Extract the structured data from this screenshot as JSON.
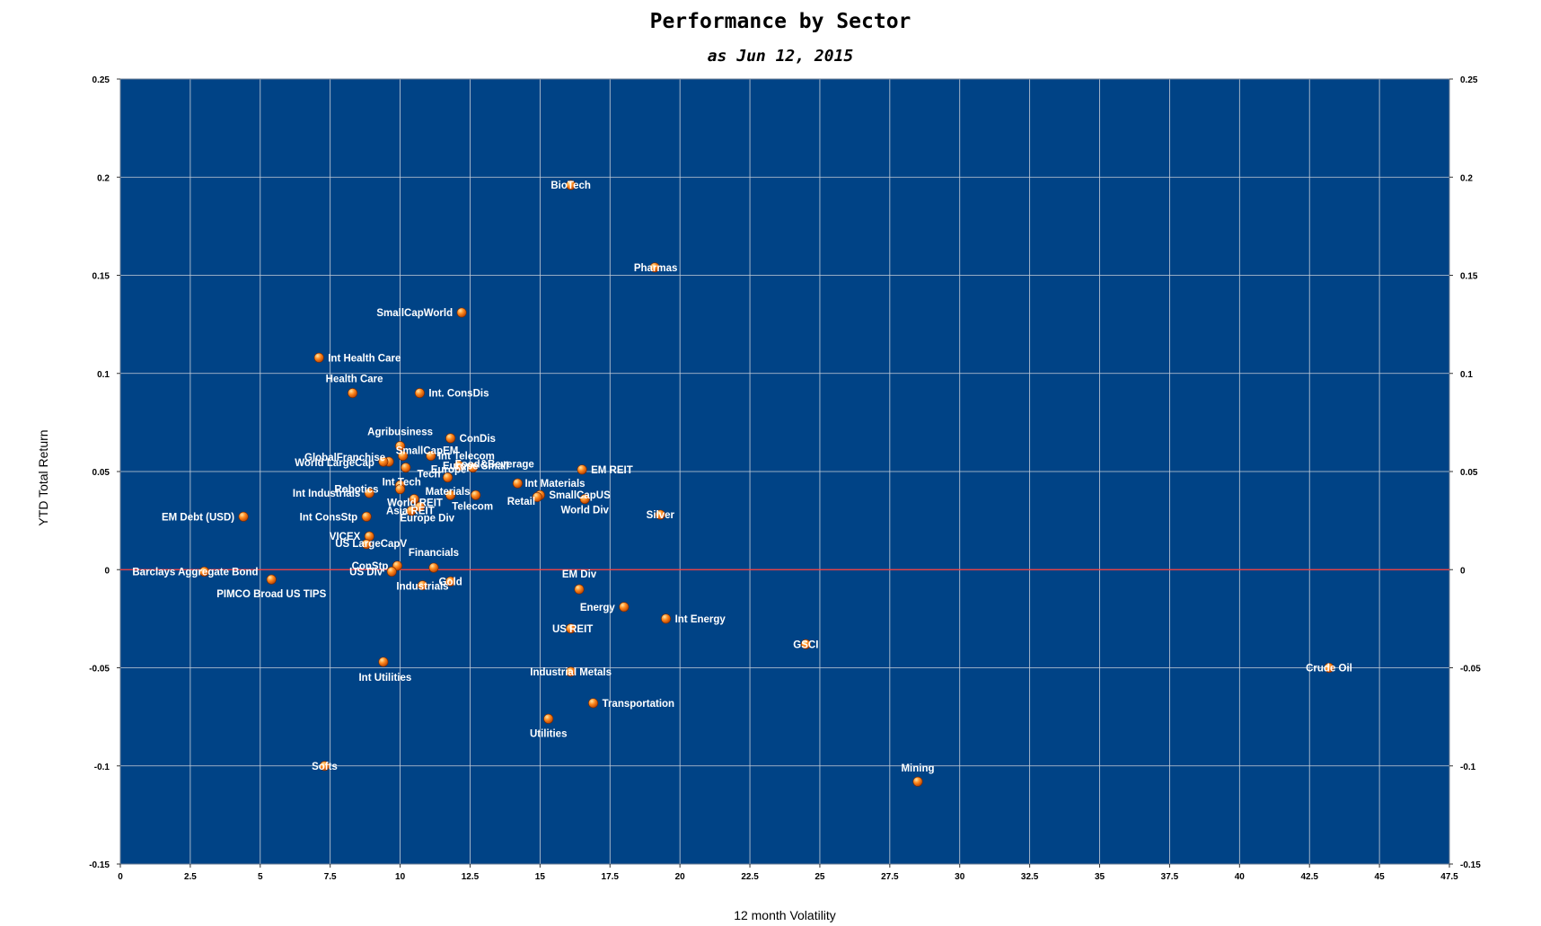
{
  "chart_data": {
    "type": "scatter",
    "title": "Performance by Sector",
    "subtitle": "as Jun 12, 2015",
    "xlabel": "12 month Volatility",
    "ylabel": "YTD Total Return",
    "xlim": [
      0,
      47.5
    ],
    "ylim": [
      -0.15,
      0.25
    ],
    "x_ticks": [
      "0",
      "2.5",
      "5",
      "7.5",
      "10",
      "12.5",
      "15",
      "17.5",
      "20",
      "22.5",
      "25",
      "27.5",
      "30",
      "32.5",
      "35",
      "37.5",
      "40",
      "42.5",
      "45",
      "47.5"
    ],
    "y_ticks": [
      "-0.15",
      "-0.1",
      "-0.05",
      "0",
      "0.05",
      "0.1",
      "0.15",
      "0.2",
      "0.25"
    ],
    "grid": true,
    "right_axis": true,
    "colors": {
      "plot_background": "#004386",
      "grid": "#c9cfd8",
      "zero_line": "#ff3b3b",
      "point": "#ff7a00",
      "label": "#ffffff"
    },
    "points": [
      {
        "label": "BioTech",
        "x": 16.1,
        "y": 0.196
      },
      {
        "label": "Pharmas",
        "x": 19.1,
        "y": 0.154
      },
      {
        "label": "SmallCapWorld",
        "x": 12.2,
        "y": 0.131
      },
      {
        "label": "Int Health Care",
        "x": 7.1,
        "y": 0.108
      },
      {
        "label": "Health Care",
        "x": 8.3,
        "y": 0.09
      },
      {
        "label": "Int. ConsDis",
        "x": 10.7,
        "y": 0.09
      },
      {
        "label": "Agribusiness",
        "x": 10.0,
        "y": 0.063
      },
      {
        "label": "ConDis",
        "x": 11.8,
        "y": 0.067
      },
      {
        "label": "SmallCapEM",
        "x": 10.1,
        "y": 0.058
      },
      {
        "label": "GlobalFranchise",
        "x": 9.6,
        "y": 0.055
      },
      {
        "label": "World LargeCap",
        "x": 9.4,
        "y": 0.055
      },
      {
        "label": "Int Telecom",
        "x": 11.1,
        "y": 0.058
      },
      {
        "label": "Europe",
        "x": 10.2,
        "y": 0.052
      },
      {
        "label": "Food&Beverage",
        "x": 12.6,
        "y": 0.052
      },
      {
        "label": "Europe Small",
        "x": 12.1,
        "y": 0.053
      },
      {
        "label": "EM REIT",
        "x": 16.5,
        "y": 0.051
      },
      {
        "label": "Int Materials",
        "x": 14.2,
        "y": 0.044
      },
      {
        "label": "Int Tech",
        "x": 10.0,
        "y": 0.043
      },
      {
        "label": "Tech",
        "x": 11.7,
        "y": 0.047
      },
      {
        "label": "Robotics",
        "x": 10.0,
        "y": 0.041
      },
      {
        "label": "Int Industrials",
        "x": 8.9,
        "y": 0.039
      },
      {
        "label": "World REIT",
        "x": 10.5,
        "y": 0.036
      },
      {
        "label": "Materials",
        "x": 11.8,
        "y": 0.038
      },
      {
        "label": "Retail",
        "x": 12.7,
        "y": 0.038
      },
      {
        "label": "SmallCapUS",
        "x": 15.0,
        "y": 0.038
      },
      {
        "label": "Asia REIT",
        "x": 10.4,
        "y": 0.03
      },
      {
        "label": "Telecom",
        "x": 14.9,
        "y": 0.037
      },
      {
        "label": "World Div",
        "x": 16.6,
        "y": 0.036
      },
      {
        "label": "Silver",
        "x": 19.3,
        "y": 0.028
      },
      {
        "label": "EM Debt (USD)",
        "x": 4.4,
        "y": 0.027
      },
      {
        "label": "Int ConsStp",
        "x": 8.8,
        "y": 0.027
      },
      {
        "label": "Europe Div",
        "x": 10.7,
        "y": 0.032
      },
      {
        "label": "VICEX",
        "x": 8.9,
        "y": 0.017
      },
      {
        "label": "US LargeCapV",
        "x": 8.8,
        "y": 0.013
      },
      {
        "label": "Financials",
        "x": 11.2,
        "y": 0.001
      },
      {
        "label": "ConStp",
        "x": 9.9,
        "y": 0.002
      },
      {
        "label": "US Div",
        "x": 9.7,
        "y": -0.001
      },
      {
        "label": "Barclays Aggregate Bond",
        "x": 3.0,
        "y": -0.001
      },
      {
        "label": "PIMCO Broad US TIPS",
        "x": 5.4,
        "y": -0.005
      },
      {
        "label": "Gold",
        "x": 11.8,
        "y": -0.006
      },
      {
        "label": "Industrials",
        "x": 10.8,
        "y": -0.008
      },
      {
        "label": "EM Div",
        "x": 16.4,
        "y": -0.01
      },
      {
        "label": "Energy",
        "x": 18.0,
        "y": -0.019
      },
      {
        "label": "Int Energy",
        "x": 19.5,
        "y": -0.025
      },
      {
        "label": "US REIT",
        "x": 16.1,
        "y": -0.03
      },
      {
        "label": "GSCI",
        "x": 24.5,
        "y": -0.038
      },
      {
        "label": "Crude Oil",
        "x": 43.2,
        "y": -0.05
      },
      {
        "label": "Int Utilities",
        "x": 9.4,
        "y": -0.047
      },
      {
        "label": "Industrial Metals",
        "x": 16.1,
        "y": -0.052
      },
      {
        "label": "Transportation",
        "x": 16.9,
        "y": -0.068
      },
      {
        "label": "Utilities",
        "x": 15.3,
        "y": -0.076
      },
      {
        "label": "Softs",
        "x": 7.3,
        "y": -0.1
      },
      {
        "label": "Mining",
        "x": 28.5,
        "y": -0.108
      }
    ]
  }
}
